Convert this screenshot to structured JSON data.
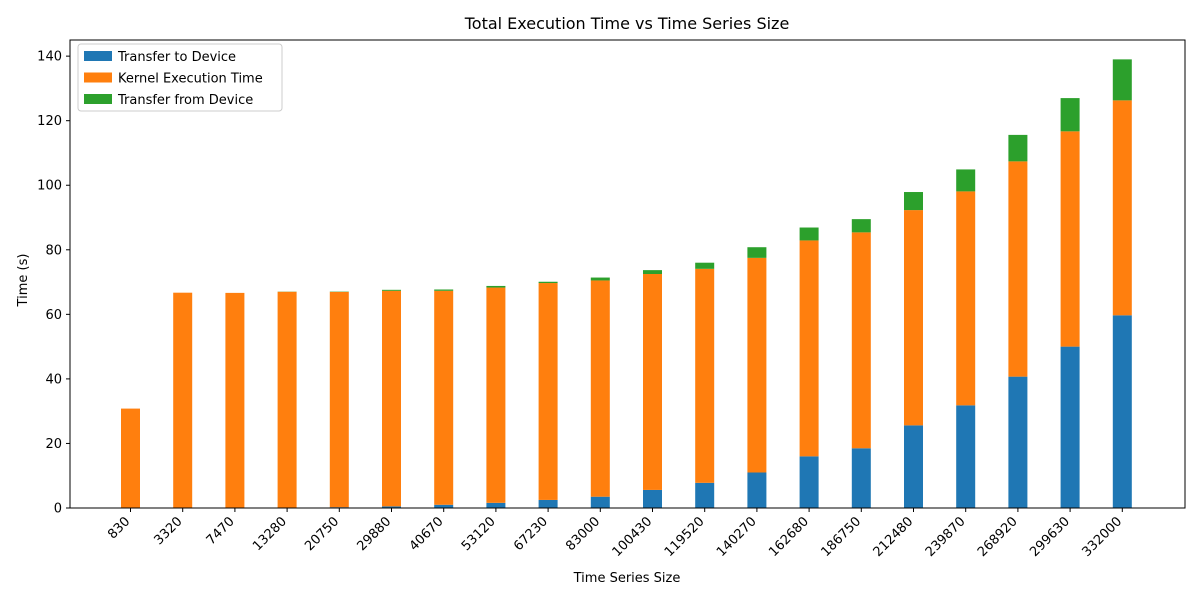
{
  "chart_data": {
    "type": "bar",
    "stacked": true,
    "title": "Total Execution Time vs Time Series Size",
    "xlabel": "Time Series Size",
    "ylabel": "Time (s)",
    "ylim": [
      0,
      145
    ],
    "yticks": [
      0,
      20,
      40,
      60,
      80,
      100,
      120,
      140
    ],
    "legend_position": "top-left",
    "grid": false,
    "categories": [
      "830",
      "3320",
      "7470",
      "13280",
      "20750",
      "29880",
      "40670",
      "53120",
      "67230",
      "83000",
      "100430",
      "119520",
      "140270",
      "162680",
      "186750",
      "212480",
      "239870",
      "268920",
      "299630",
      "332000"
    ],
    "series": [
      {
        "name": "Transfer to Device",
        "color": "#1f77b4",
        "values": [
          0.0,
          0.01,
          0.05,
          0.1,
          0.25,
          0.5,
          1.0,
          1.6,
          2.5,
          3.5,
          5.6,
          7.8,
          11.0,
          16.0,
          18.5,
          25.6,
          31.8,
          40.7,
          50.0,
          59.7
        ]
      },
      {
        "name": "Kernel Execution Time",
        "color": "#ff7f0e",
        "values": [
          30.8,
          66.7,
          66.6,
          66.9,
          66.7,
          66.8,
          66.3,
          66.7,
          67.2,
          67.0,
          66.9,
          66.3,
          66.5,
          66.9,
          66.9,
          66.7,
          66.3,
          66.7,
          66.7,
          66.6
        ]
      },
      {
        "name": "Transfer from Device",
        "color": "#2ca02c",
        "values": [
          0.0,
          0.0,
          0.0,
          0.05,
          0.1,
          0.3,
          0.4,
          0.5,
          0.4,
          0.9,
          1.2,
          1.9,
          3.3,
          4.0,
          4.1,
          5.6,
          6.8,
          8.2,
          10.3,
          12.7
        ]
      }
    ]
  }
}
